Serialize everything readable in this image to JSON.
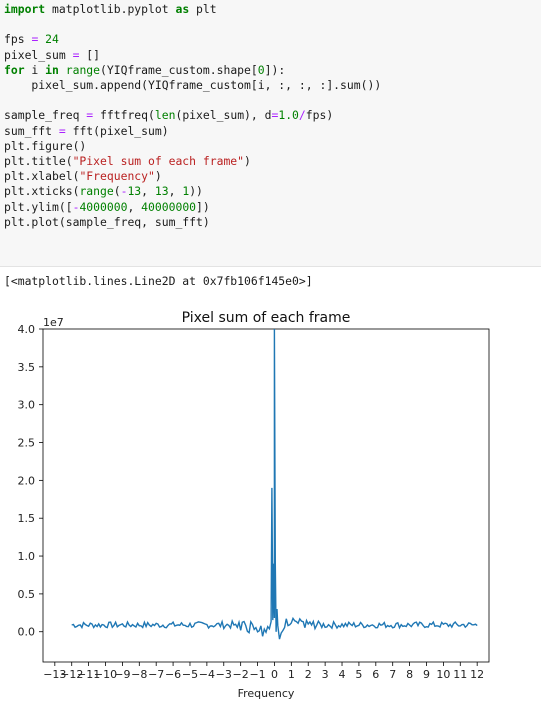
{
  "code": {
    "lines": [
      [
        {
          "t": "import",
          "c": "kw"
        },
        {
          "t": " matplotlib.pyplot "
        },
        {
          "t": "as",
          "c": "kw"
        },
        {
          "t": " plt"
        }
      ],
      [],
      [
        {
          "t": "fps "
        },
        {
          "t": "=",
          "c": "op"
        },
        {
          "t": " "
        },
        {
          "t": "24",
          "c": "num"
        }
      ],
      [
        {
          "t": "pixel_sum "
        },
        {
          "t": "=",
          "c": "op"
        },
        {
          "t": " []"
        }
      ],
      [
        {
          "t": "for",
          "c": "kw"
        },
        {
          "t": " i "
        },
        {
          "t": "in",
          "c": "kw"
        },
        {
          "t": " "
        },
        {
          "t": "range",
          "c": "bi"
        },
        {
          "t": "(YIQframe_custom.shape["
        },
        {
          "t": "0",
          "c": "num"
        },
        {
          "t": "]):"
        }
      ],
      [
        {
          "t": "    pixel_sum.append(YIQframe_custom[i, :, :, :].sum())"
        }
      ],
      [],
      [
        {
          "t": "sample_freq "
        },
        {
          "t": "=",
          "c": "op"
        },
        {
          "t": " fftfreq("
        },
        {
          "t": "len",
          "c": "bi"
        },
        {
          "t": "(pixel_sum), d"
        },
        {
          "t": "=",
          "c": "op"
        },
        {
          "t": "1.0",
          "c": "num"
        },
        {
          "t": "/",
          "c": "op"
        },
        {
          "t": "fps)"
        }
      ],
      [
        {
          "t": "sum_fft "
        },
        {
          "t": "=",
          "c": "op"
        },
        {
          "t": " fft(pixel_sum)"
        }
      ],
      [
        {
          "t": "plt.figure()"
        }
      ],
      [
        {
          "t": "plt.title("
        },
        {
          "t": "\"Pixel sum of each frame\"",
          "c": "str"
        },
        {
          "t": ")"
        }
      ],
      [
        {
          "t": "plt.xlabel("
        },
        {
          "t": "\"Frequency\"",
          "c": "str"
        },
        {
          "t": ")"
        }
      ],
      [
        {
          "t": "plt.xticks("
        },
        {
          "t": "range",
          "c": "bi"
        },
        {
          "t": "("
        },
        {
          "t": "-",
          "c": "op"
        },
        {
          "t": "13",
          "c": "num"
        },
        {
          "t": ", "
        },
        {
          "t": "13",
          "c": "num"
        },
        {
          "t": ", "
        },
        {
          "t": "1",
          "c": "num"
        },
        {
          "t": "))"
        }
      ],
      [
        {
          "t": "plt.ylim(["
        },
        {
          "t": "-",
          "c": "op"
        },
        {
          "t": "4000000",
          "c": "num"
        },
        {
          "t": ", "
        },
        {
          "t": "40000000",
          "c": "num"
        },
        {
          "t": "])"
        }
      ],
      [
        {
          "t": "plt.plot(sample_freq, sum_fft)"
        }
      ]
    ]
  },
  "output": {
    "text": "[<matplotlib.lines.Line2D at 0x7fb106f145e0>]"
  },
  "colors": {
    "line": "#1f77b4",
    "cell_bg": "#f7f7f7",
    "keyword": "#008000",
    "string": "#ba2121",
    "operator": "#aa22ff"
  },
  "chart_data": {
    "type": "line",
    "title": "Pixel sum of each frame",
    "xlabel": "Frequency",
    "ylabel": "",
    "offset_label": "1e7",
    "xlim": [
      -13.7,
      12.7
    ],
    "ylim": [
      -4000000,
      40000000
    ],
    "xticks": [
      -13,
      -12,
      -11,
      -10,
      -9,
      -8,
      -7,
      -6,
      -5,
      -4,
      -3,
      -2,
      -1,
      0,
      1,
      2,
      3,
      4,
      5,
      6,
      7,
      8,
      9,
      10,
      11,
      12
    ],
    "yticks": [
      0,
      5000000,
      10000000,
      15000000,
      20000000,
      25000000,
      30000000,
      35000000,
      40000000
    ],
    "ytick_labels": [
      "0.0",
      "0.5",
      "1.0",
      "1.5",
      "2.0",
      "2.5",
      "3.0",
      "3.5",
      "4.0"
    ],
    "x_range_estimate": [
      -12,
      12
    ],
    "peak": {
      "x": 0,
      "y": 40000000
    },
    "secondary_peak": {
      "x": -0.15,
      "y": 19000000
    }
  }
}
